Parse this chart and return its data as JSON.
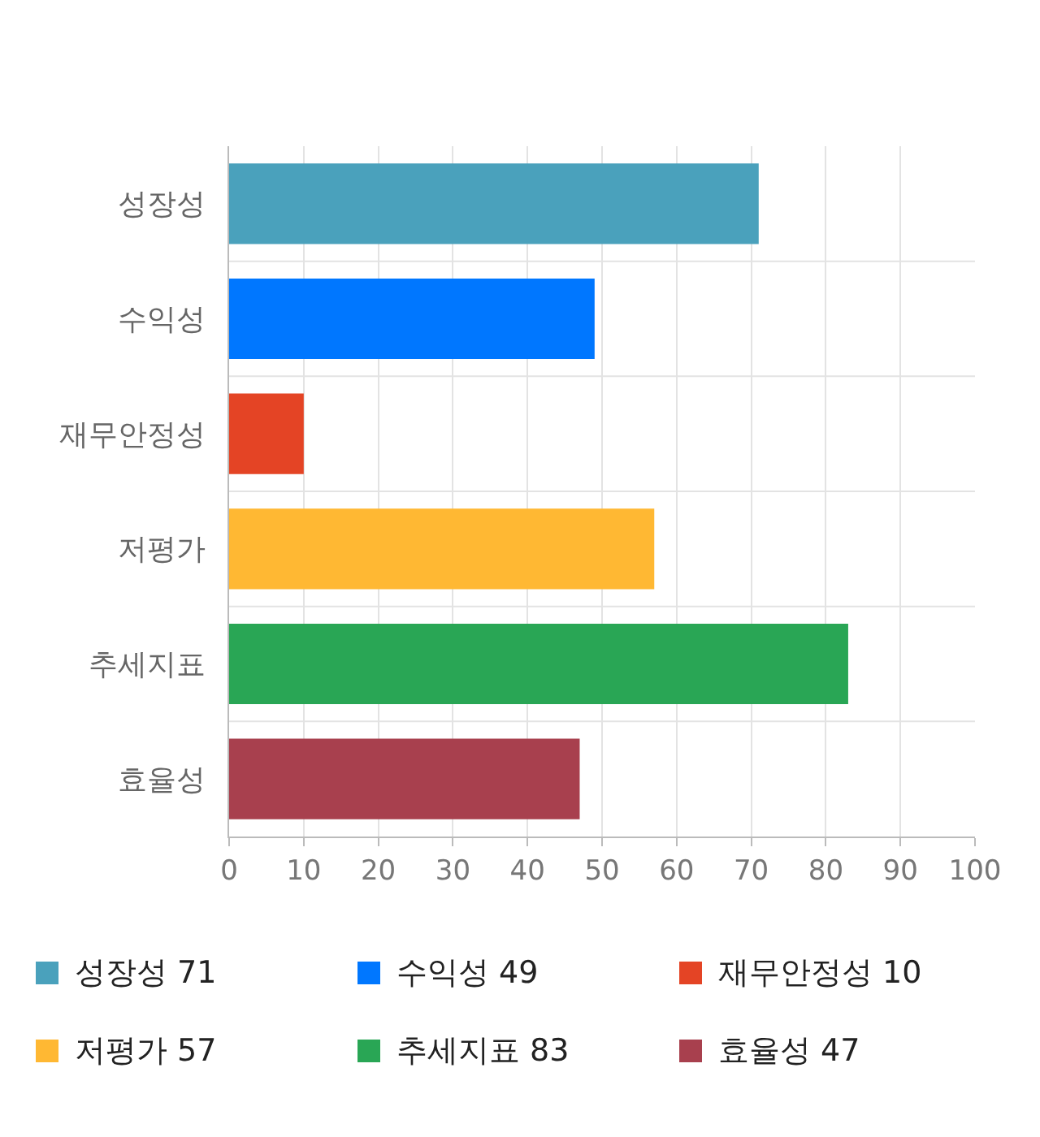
{
  "chart_data": {
    "type": "bar",
    "orientation": "horizontal",
    "categories": [
      "성장성",
      "수익성",
      "재무안정성",
      "저평가",
      "추세지표",
      "효율성"
    ],
    "values": [
      71,
      49,
      10,
      57,
      83,
      47
    ],
    "value_labels": [
      "71",
      "49",
      "10",
      "57",
      "83",
      "47"
    ],
    "colors": [
      "#4aa1bc",
      "#0077ff",
      "#e44425",
      "#ffb833",
      "#29a655",
      "#a8404e"
    ],
    "xlim": [
      0,
      100
    ],
    "xticks": [
      0,
      10,
      20,
      30,
      40,
      50,
      60,
      70,
      80,
      90,
      100
    ],
    "grid": true
  }
}
